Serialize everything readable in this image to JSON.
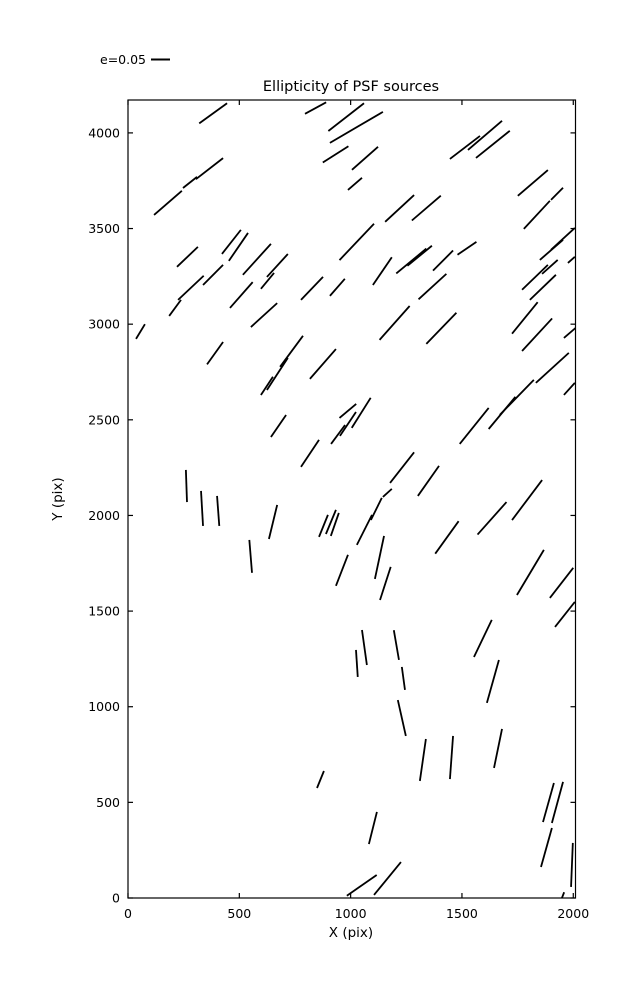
{
  "chart_data": {
    "type": "scatter",
    "subtype": "ellipticity-whisker-segments",
    "title": "Ellipticity of PSF sources",
    "xlabel": "X (pix)",
    "ylabel": "Y (pix)",
    "xlim": [
      0,
      2010
    ],
    "ylim": [
      0,
      4172
    ],
    "xticks": [
      0,
      500,
      1000,
      1500,
      2000
    ],
    "yticks": [
      0,
      500,
      1000,
      1500,
      2000,
      2500,
      3000,
      3500,
      4000
    ],
    "grid": false,
    "legend": {
      "label": "e=0.05",
      "position": "above-axes-top-left"
    },
    "colors": {
      "stroke": "#000000",
      "background": "#ffffff"
    },
    "segments": [
      [
        320,
        4050,
        445,
        4155
      ],
      [
        795,
        4100,
        890,
        4160
      ],
      [
        900,
        4010,
        1060,
        4155
      ],
      [
        907,
        3948,
        1145,
        4110
      ],
      [
        875,
        3845,
        990,
        3930
      ],
      [
        1006,
        3807,
        1123,
        3927
      ],
      [
        305,
        3758,
        427,
        3868
      ],
      [
        247,
        3712,
        310,
        3770
      ],
      [
        117,
        3571,
        242,
        3697
      ],
      [
        1446,
        3864,
        1581,
        3984
      ],
      [
        1527,
        3911,
        1680,
        4063
      ],
      [
        1563,
        3869,
        1715,
        4011
      ],
      [
        1751,
        3671,
        1886,
        3806
      ],
      [
        988,
        3702,
        1051,
        3765
      ],
      [
        422,
        3367,
        507,
        3493
      ],
      [
        453,
        3331,
        539,
        3477
      ],
      [
        220,
        3300,
        314,
        3404
      ],
      [
        516,
        3258,
        642,
        3420
      ],
      [
        624,
        3247,
        718,
        3367
      ],
      [
        337,
        3205,
        427,
        3310
      ],
      [
        458,
        3085,
        560,
        3220
      ],
      [
        597,
        3185,
        656,
        3268
      ],
      [
        777,
        3127,
        876,
        3247
      ],
      [
        907,
        3148,
        974,
        3237
      ],
      [
        1155,
        3535,
        1285,
        3675
      ],
      [
        1275,
        3542,
        1405,
        3672
      ],
      [
        950,
        3335,
        1105,
        3525
      ],
      [
        1100,
        3205,
        1185,
        3350
      ],
      [
        1205,
        3265,
        1340,
        3395
      ],
      [
        1255,
        3305,
        1365,
        3410
      ],
      [
        1370,
        3280,
        1460,
        3385
      ],
      [
        1305,
        3130,
        1430,
        3263
      ],
      [
        1480,
        3363,
        1565,
        3430
      ],
      [
        1770,
        3180,
        1886,
        3310
      ],
      [
        1805,
        3127,
        1922,
        3258
      ],
      [
        1850,
        3336,
        1954,
        3441
      ],
      [
        1900,
        3389,
        2007,
        3503
      ],
      [
        1860,
        3263,
        1930,
        3336
      ],
      [
        1976,
        3320,
        2007,
        3352
      ],
      [
        1778,
        3498,
        1895,
        3645
      ],
      [
        1900,
        3650,
        1954,
        3713
      ],
      [
        225,
        3127,
        340,
        3253
      ],
      [
        1130,
        2918,
        1265,
        3095
      ],
      [
        1340,
        2897,
        1475,
        3060
      ],
      [
        1725,
        2950,
        1840,
        3115
      ],
      [
        1770,
        2860,
        1905,
        3030
      ],
      [
        1958,
        2928,
        2010,
        2980
      ],
      [
        185,
        3043,
        238,
        3127
      ],
      [
        36,
        2923,
        76,
        3000
      ],
      [
        355,
        2790,
        427,
        2907
      ],
      [
        552,
        2985,
        670,
        3110
      ],
      [
        624,
        2656,
        718,
        2824
      ],
      [
        683,
        2777,
        786,
        2939
      ],
      [
        597,
        2630,
        651,
        2725
      ],
      [
        817,
        2714,
        934,
        2870
      ],
      [
        1832,
        2693,
        1980,
        2850
      ],
      [
        1958,
        2630,
        2007,
        2693
      ],
      [
        1490,
        2374,
        1620,
        2562
      ],
      [
        1620,
        2452,
        1740,
        2620
      ],
      [
        1670,
        2526,
        1823,
        2709
      ],
      [
        1005,
        2458,
        1090,
        2615
      ],
      [
        950,
        2510,
        1025,
        2583
      ],
      [
        642,
        2410,
        710,
        2525
      ],
      [
        777,
        2254,
        858,
        2395
      ],
      [
        912,
        2374,
        975,
        2473
      ],
      [
        952,
        2416,
        1024,
        2541
      ],
      [
        260,
        2238,
        265,
        2070
      ],
      [
        328,
        2128,
        337,
        1945
      ],
      [
        400,
        2102,
        410,
        1945
      ],
      [
        1177,
        2170,
        1285,
        2330
      ],
      [
        1302,
        2102,
        1397,
        2259
      ],
      [
        1145,
        2097,
        1185,
        2139
      ],
      [
        1725,
        1976,
        1860,
        2185
      ],
      [
        633,
        1877,
        670,
        2055
      ],
      [
        545,
        1872,
        557,
        1700
      ],
      [
        858,
        1888,
        898,
        2003
      ],
      [
        889,
        1903,
        934,
        2029
      ],
      [
        911,
        1893,
        947,
        2013
      ],
      [
        1028,
        1846,
        1096,
        2003
      ],
      [
        1091,
        1976,
        1140,
        2092
      ],
      [
        1380,
        1800,
        1485,
        1970
      ],
      [
        1570,
        1900,
        1700,
        2070
      ],
      [
        934,
        1632,
        988,
        1794
      ],
      [
        1109,
        1668,
        1150,
        1893
      ],
      [
        1132,
        1558,
        1180,
        1731
      ],
      [
        1747,
        1584,
        1868,
        1820
      ],
      [
        1895,
        1569,
        2000,
        1726
      ],
      [
        1918,
        1417,
        2007,
        1548
      ],
      [
        1051,
        1401,
        1073,
        1218
      ],
      [
        1024,
        1297,
        1032,
        1156
      ],
      [
        1194,
        1400,
        1217,
        1245
      ],
      [
        1230,
        1208,
        1244,
        1088
      ],
      [
        1554,
        1260,
        1634,
        1454
      ],
      [
        1612,
        1020,
        1666,
        1244
      ],
      [
        1212,
        1035,
        1248,
        847
      ],
      [
        849,
        575,
        880,
        664
      ],
      [
        1311,
        612,
        1338,
        831
      ],
      [
        1446,
        622,
        1460,
        847
      ],
      [
        1644,
        680,
        1680,
        884
      ],
      [
        1864,
        397,
        1913,
        601
      ],
      [
        1904,
        392,
        1954,
        607
      ],
      [
        1855,
        162,
        1904,
        366
      ],
      [
        1082,
        282,
        1118,
        450
      ],
      [
        1105,
        16,
        1226,
        188
      ],
      [
        983,
        12,
        1117,
        120
      ],
      [
        1990,
        58,
        1998,
        288
      ],
      [
        1949,
        0,
        1959,
        30
      ]
    ]
  }
}
